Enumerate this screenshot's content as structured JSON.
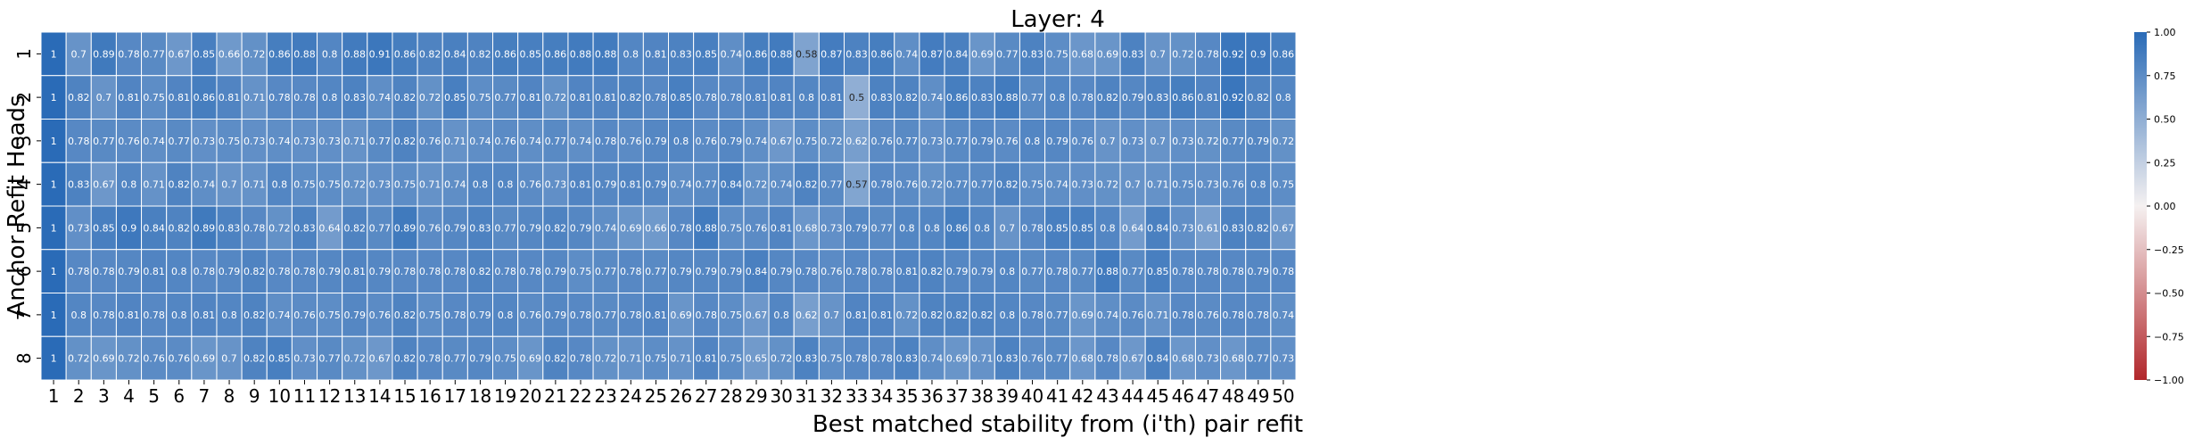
{
  "chart_data": {
    "type": "heatmap",
    "title": "Layer: 4",
    "xlabel": "Best matched stability from (i'th) pair refit",
    "ylabel": "Anchor Refit Heads",
    "x_categories": [
      "1",
      "2",
      "3",
      "4",
      "5",
      "6",
      "7",
      "8",
      "9",
      "10",
      "11",
      "12",
      "13",
      "14",
      "15",
      "16",
      "17",
      "18",
      "19",
      "20",
      "21",
      "22",
      "23",
      "24",
      "25",
      "26",
      "27",
      "28",
      "29",
      "30",
      "31",
      "32",
      "33",
      "34",
      "35",
      "36",
      "37",
      "38",
      "39",
      "40",
      "41",
      "42",
      "43",
      "44",
      "45",
      "46",
      "47",
      "48",
      "49",
      "50"
    ],
    "y_categories": [
      "1",
      "2",
      "3",
      "4",
      "5",
      "6",
      "7",
      "8"
    ],
    "values": [
      [
        1,
        0.7,
        0.89,
        0.78,
        0.77,
        0.67,
        0.85,
        0.66,
        0.72,
        0.86,
        0.88,
        0.8,
        0.88,
        0.91,
        0.86,
        0.82,
        0.84,
        0.82,
        0.86,
        0.85,
        0.86,
        0.88,
        0.88,
        0.8,
        0.81,
        0.83,
        0.85,
        0.74,
        0.86,
        0.88,
        0.58,
        0.87,
        0.83,
        0.86,
        0.74,
        0.87,
        0.84,
        0.69,
        0.77,
        0.83,
        0.75,
        0.68,
        0.69,
        0.83,
        0.7,
        0.72,
        0.78,
        0.92,
        0.9,
        0.86
      ],
      [
        1,
        0.82,
        0.7,
        0.81,
        0.75,
        0.81,
        0.86,
        0.81,
        0.71,
        0.78,
        0.78,
        0.8,
        0.83,
        0.74,
        0.82,
        0.72,
        0.85,
        0.75,
        0.77,
        0.81,
        0.72,
        0.81,
        0.81,
        0.82,
        0.78,
        0.85,
        0.78,
        0.78,
        0.81,
        0.81,
        0.8,
        0.81,
        0.5,
        0.83,
        0.82,
        0.74,
        0.86,
        0.83,
        0.88,
        0.77,
        0.8,
        0.78,
        0.82,
        0.79,
        0.83,
        0.86,
        0.81,
        0.92,
        0.82,
        0.8
      ],
      [
        1,
        0.78,
        0.77,
        0.76,
        0.74,
        0.77,
        0.73,
        0.75,
        0.73,
        0.74,
        0.73,
        0.73,
        0.71,
        0.77,
        0.82,
        0.76,
        0.71,
        0.74,
        0.76,
        0.74,
        0.77,
        0.74,
        0.78,
        0.76,
        0.79,
        0.8,
        0.76,
        0.79,
        0.74,
        0.67,
        0.75,
        0.72,
        0.62,
        0.76,
        0.77,
        0.73,
        0.77,
        0.79,
        0.76,
        0.8,
        0.79,
        0.76,
        0.7,
        0.73,
        0.7,
        0.73,
        0.72,
        0.77,
        0.79,
        0.72
      ],
      [
        1,
        0.83,
        0.67,
        0.8,
        0.71,
        0.82,
        0.74,
        0.7,
        0.71,
        0.8,
        0.75,
        0.75,
        0.72,
        0.73,
        0.75,
        0.71,
        0.74,
        0.8,
        0.8,
        0.76,
        0.73,
        0.81,
        0.79,
        0.81,
        0.79,
        0.74,
        0.77,
        0.84,
        0.72,
        0.74,
        0.82,
        0.77,
        0.57,
        0.78,
        0.76,
        0.72,
        0.77,
        0.77,
        0.82,
        0.75,
        0.74,
        0.73,
        0.72,
        0.7,
        0.71,
        0.75,
        0.73,
        0.76,
        0.8,
        0.75
      ],
      [
        1,
        0.73,
        0.85,
        0.9,
        0.84,
        0.82,
        0.89,
        0.83,
        0.78,
        0.72,
        0.83,
        0.64,
        0.82,
        0.77,
        0.89,
        0.76,
        0.79,
        0.83,
        0.77,
        0.79,
        0.82,
        0.79,
        0.74,
        0.69,
        0.66,
        0.78,
        0.88,
        0.75,
        0.76,
        0.81,
        0.68,
        0.73,
        0.79,
        0.77,
        0.8,
        0.8,
        0.86,
        0.8,
        0.7,
        0.78,
        0.85,
        0.85,
        0.8,
        0.64,
        0.84,
        0.73,
        0.61,
        0.83,
        0.82,
        0.67
      ],
      [
        1,
        0.78,
        0.78,
        0.79,
        0.81,
        0.8,
        0.78,
        0.79,
        0.82,
        0.78,
        0.78,
        0.79,
        0.81,
        0.79,
        0.78,
        0.78,
        0.78,
        0.82,
        0.78,
        0.78,
        0.79,
        0.75,
        0.77,
        0.78,
        0.77,
        0.79,
        0.79,
        0.79,
        0.84,
        0.79,
        0.78,
        0.76,
        0.78,
        0.78,
        0.81,
        0.82,
        0.79,
        0.79,
        0.8,
        0.77,
        0.78,
        0.77,
        0.88,
        0.77,
        0.85,
        0.78,
        0.78,
        0.78,
        0.79,
        0.78
      ],
      [
        1,
        0.8,
        0.78,
        0.81,
        0.78,
        0.8,
        0.81,
        0.8,
        0.82,
        0.74,
        0.76,
        0.75,
        0.79,
        0.76,
        0.82,
        0.75,
        0.78,
        0.79,
        0.8,
        0.76,
        0.79,
        0.78,
        0.77,
        0.78,
        0.81,
        0.69,
        0.78,
        0.75,
        0.67,
        0.8,
        0.62,
        0.7,
        0.81,
        0.81,
        0.72,
        0.82,
        0.82,
        0.82,
        0.8,
        0.78,
        0.77,
        0.69,
        0.74,
        0.76,
        0.71,
        0.78,
        0.76,
        0.78,
        0.78,
        0.74
      ],
      [
        1,
        0.72,
        0.69,
        0.72,
        0.76,
        0.76,
        0.69,
        0.7,
        0.82,
        0.85,
        0.73,
        0.77,
        0.72,
        0.67,
        0.82,
        0.78,
        0.77,
        0.79,
        0.75,
        0.69,
        0.82,
        0.78,
        0.72,
        0.71,
        0.75,
        0.71,
        0.81,
        0.75,
        0.65,
        0.72,
        0.83,
        0.75,
        0.78,
        0.78,
        0.83,
        0.74,
        0.69,
        0.71,
        0.83,
        0.76,
        0.77,
        0.68,
        0.78,
        0.67,
        0.84,
        0.68,
        0.73,
        0.68,
        0.77,
        0.73
      ]
    ],
    "vmin": -1.0,
    "vmax": 1.0,
    "colormap": "vlag_r",
    "colors": {
      "low": "#b2272b",
      "mid": "#f5f1f1",
      "high": "#2a6bb7",
      "cell_border": "#ffffff"
    },
    "colorbar_ticks": [
      "1.00",
      "0.75",
      "0.50",
      "0.25",
      "0.00",
      "−0.25",
      "−0.50",
      "−0.75",
      "−1.00"
    ],
    "colorbar_tick_values": [
      1.0,
      0.75,
      0.5,
      0.25,
      0.0,
      -0.25,
      -0.5,
      -0.75,
      -1.0
    ],
    "legend_placement": "right",
    "annotations": true
  }
}
